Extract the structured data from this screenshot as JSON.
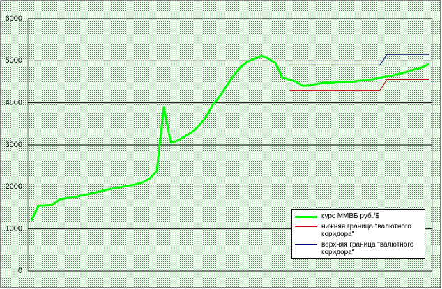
{
  "chart_data": {
    "type": "line",
    "categories": [
      null,
      null,
      null,
      null,
      null,
      null,
      null,
      null,
      null,
      null,
      null,
      null,
      null,
      null,
      null,
      null,
      null,
      null,
      null,
      null,
      null,
      null,
      null,
      null,
      null,
      null,
      null,
      null,
      null,
      null,
      null,
      null,
      null,
      null,
      null,
      null,
      null,
      null,
      null,
      null,
      null,
      null,
      null,
      null,
      null,
      null,
      null,
      null,
      null,
      null,
      null,
      null,
      null,
      null,
      null,
      null,
      null,
      null
    ],
    "series": [
      {
        "name": "курс ММВБ  руб./$",
        "color": "#00ff00",
        "width": 3,
        "values": [
          1200,
          1550,
          1560,
          1570,
          1700,
          1730,
          1750,
          1790,
          1820,
          1860,
          1900,
          1940,
          1970,
          2000,
          2030,
          2060,
          2110,
          2200,
          2380,
          3900,
          3050,
          3100,
          3200,
          3300,
          3450,
          3650,
          3950,
          4150,
          4400,
          4650,
          4850,
          4980,
          5050,
          5120,
          5050,
          4950,
          4600,
          4550,
          4500,
          4400,
          4420,
          4450,
          4480,
          4480,
          4500,
          4500,
          4500,
          4520,
          4540,
          4560,
          4600,
          4630,
          4660,
          4700,
          4740,
          4800,
          4840,
          4920
        ]
      },
      {
        "name": "нижняя граница \"валютного коридора\"",
        "color": "#cc0000",
        "width": 1,
        "values": [
          null,
          null,
          null,
          null,
          null,
          null,
          null,
          null,
          null,
          null,
          null,
          null,
          null,
          null,
          null,
          null,
          null,
          null,
          null,
          null,
          null,
          null,
          null,
          null,
          null,
          null,
          null,
          null,
          null,
          null,
          null,
          null,
          null,
          null,
          null,
          null,
          null,
          4300,
          4300,
          4300,
          4300,
          4300,
          4300,
          4300,
          4300,
          4300,
          4300,
          4300,
          4300,
          4300,
          4300,
          4550,
          4550,
          4550,
          4550,
          4550,
          4550,
          4550
        ]
      },
      {
        "name": "верхняя граница \"валютного коридора\"",
        "color": "#000080",
        "width": 1,
        "values": [
          null,
          null,
          null,
          null,
          null,
          null,
          null,
          null,
          null,
          null,
          null,
          null,
          null,
          null,
          null,
          null,
          null,
          null,
          null,
          null,
          null,
          null,
          null,
          null,
          null,
          null,
          null,
          null,
          null,
          null,
          null,
          null,
          null,
          null,
          null,
          null,
          null,
          4900,
          4900,
          4900,
          4900,
          4900,
          4900,
          4900,
          4900,
          4900,
          4900,
          4900,
          4900,
          4900,
          4900,
          5150,
          5150,
          5150,
          5150,
          5150,
          5150,
          5150
        ]
      }
    ],
    "ylim": [
      0,
      6000
    ],
    "yticks": [
      0,
      1000,
      2000,
      3000,
      4000,
      5000,
      6000
    ],
    "grid": true
  }
}
